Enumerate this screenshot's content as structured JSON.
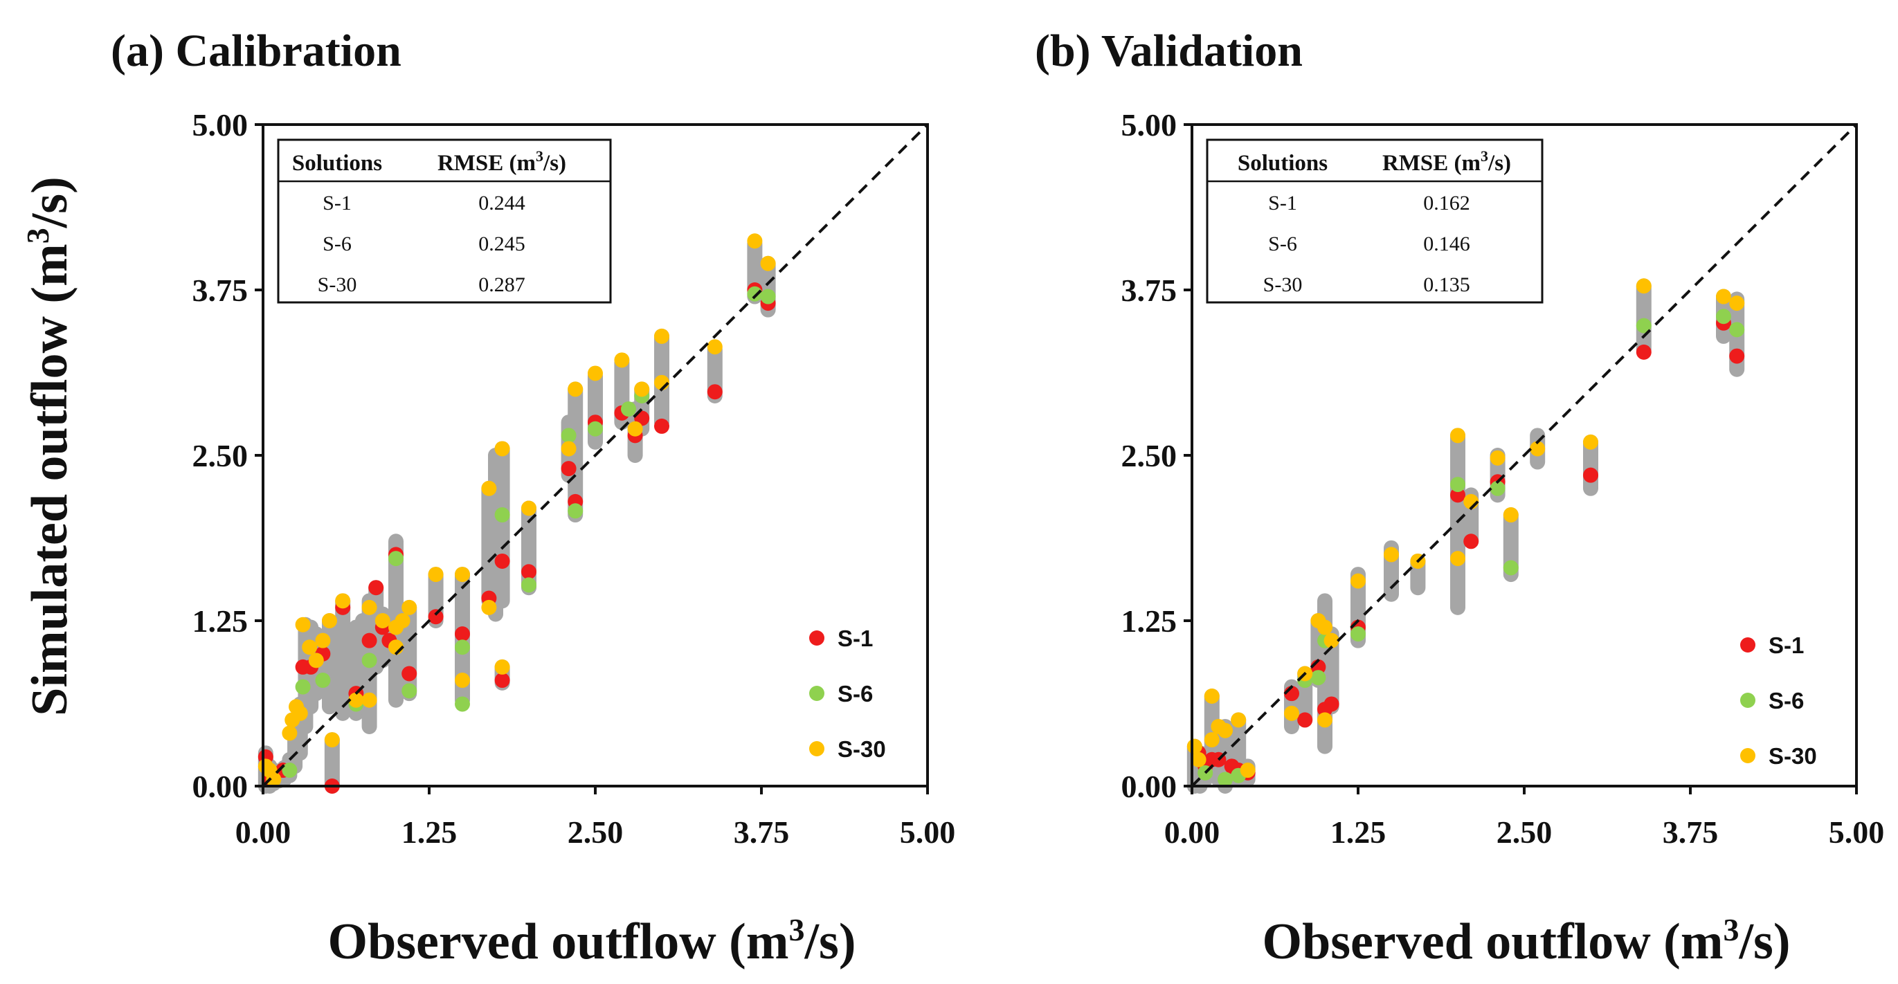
{
  "chart_data": [
    {
      "type": "scatter",
      "title": "(a) Calibration",
      "xlabel": "Observed outflow",
      "ylabel": "Simulated outflow",
      "xlim": [
        0,
        5
      ],
      "ylim": [
        0,
        5
      ],
      "xticks": [
        "0.00",
        "1.25",
        "2.50",
        "3.75",
        "5.00"
      ],
      "yticks": [
        "0.00",
        "1.25",
        "2.50",
        "3.75",
        "5.00"
      ],
      "table": {
        "headers": [
          "Solutions",
          "RMSE (m",
          "3",
          "/s)"
        ],
        "rows": [
          [
            "S-1",
            "0.244"
          ],
          [
            "S-6",
            "0.245"
          ],
          [
            "S-30",
            "0.287"
          ]
        ]
      },
      "ensemble": {
        "color": "#a6a6a6",
        "ranges": [
          [
            0.02,
            0.0,
            0.25
          ],
          [
            0.05,
            0.0,
            0.15
          ],
          [
            0.08,
            0.02,
            0.12
          ],
          [
            0.12,
            0.04,
            0.1
          ],
          [
            0.16,
            0.05,
            0.14
          ],
          [
            0.2,
            0.08,
            0.2
          ],
          [
            0.24,
            0.15,
            0.45
          ],
          [
            0.28,
            0.25,
            0.62
          ],
          [
            0.32,
            0.45,
            1.22
          ],
          [
            0.36,
            0.6,
            1.2
          ],
          [
            0.4,
            0.7,
            1.15
          ],
          [
            0.45,
            0.9,
            1.1
          ],
          [
            0.5,
            0.6,
            1.25
          ],
          [
            0.52,
            0.0,
            0.35
          ],
          [
            0.6,
            0.55,
            1.4
          ],
          [
            0.7,
            0.55,
            1.2
          ],
          [
            0.75,
            0.6,
            1.25
          ],
          [
            0.8,
            0.45,
            1.4
          ],
          [
            0.85,
            0.9,
            1.5
          ],
          [
            0.9,
            0.95,
            1.3
          ],
          [
            0.95,
            1.0,
            1.25
          ],
          [
            1.0,
            0.65,
            1.85
          ],
          [
            1.05,
            1.0,
            1.3
          ],
          [
            1.1,
            0.7,
            1.35
          ],
          [
            1.3,
            1.25,
            1.6
          ],
          [
            1.5,
            0.65,
            1.6
          ],
          [
            1.7,
            1.4,
            2.25
          ],
          [
            1.75,
            1.3,
            2.5
          ],
          [
            1.8,
            0.78,
            0.9
          ],
          [
            1.8,
            1.4,
            2.55
          ],
          [
            2.0,
            1.5,
            2.1
          ],
          [
            2.3,
            2.35,
            2.75
          ],
          [
            2.35,
            2.05,
            3.0
          ],
          [
            2.5,
            2.6,
            3.1
          ],
          [
            2.7,
            2.75,
            3.2
          ],
          [
            2.8,
            2.5,
            2.85
          ],
          [
            2.85,
            2.7,
            3.0
          ],
          [
            3.0,
            2.75,
            3.4
          ],
          [
            3.4,
            2.95,
            3.3
          ],
          [
            3.7,
            3.7,
            4.1
          ],
          [
            3.8,
            3.6,
            3.95
          ]
        ]
      },
      "series": [
        {
          "name": "S-1",
          "color": "#ee1c1c",
          "points": [
            [
              0.02,
              0.22
            ],
            [
              0.06,
              0.05
            ],
            [
              0.15,
              0.12
            ],
            [
              0.3,
              0.9
            ],
            [
              0.36,
              0.9
            ],
            [
              0.45,
              1.0
            ],
            [
              0.52,
              0.0
            ],
            [
              0.6,
              1.35
            ],
            [
              0.7,
              0.7
            ],
            [
              0.8,
              1.1
            ],
            [
              0.85,
              1.5
            ],
            [
              0.9,
              1.2
            ],
            [
              0.95,
              1.1
            ],
            [
              1.0,
              1.75
            ],
            [
              1.1,
              0.85
            ],
            [
              1.3,
              1.28
            ],
            [
              1.5,
              1.15
            ],
            [
              1.7,
              1.42
            ],
            [
              1.8,
              0.8
            ],
            [
              1.8,
              1.7
            ],
            [
              2.0,
              1.62
            ],
            [
              2.3,
              2.4
            ],
            [
              2.35,
              2.15
            ],
            [
              2.5,
              2.75
            ],
            [
              2.7,
              2.82
            ],
            [
              2.8,
              2.65
            ],
            [
              2.85,
              2.78
            ],
            [
              3.0,
              2.72
            ],
            [
              3.4,
              2.98
            ],
            [
              3.7,
              3.75
            ],
            [
              3.8,
              3.65
            ]
          ]
        },
        {
          "name": "S-6",
          "color": "#8fd14f",
          "points": [
            [
              0.2,
              0.12
            ],
            [
              0.3,
              0.75
            ],
            [
              0.45,
              0.8
            ],
            [
              0.7,
              0.62
            ],
            [
              0.8,
              0.95
            ],
            [
              1.0,
              1.72
            ],
            [
              1.1,
              0.72
            ],
            [
              1.5,
              0.62
            ],
            [
              1.5,
              1.05
            ],
            [
              1.8,
              2.05
            ],
            [
              2.0,
              1.52
            ],
            [
              2.35,
              2.08
            ],
            [
              2.3,
              2.65
            ],
            [
              2.5,
              2.7
            ],
            [
              2.75,
              2.85
            ],
            [
              2.85,
              2.95
            ],
            [
              3.7,
              3.72
            ],
            [
              3.8,
              3.7
            ]
          ]
        },
        {
          "name": "S-30",
          "color": "#ffc000",
          "points": [
            [
              0.02,
              0.15
            ],
            [
              0.05,
              0.12
            ],
            [
              0.08,
              0.05
            ],
            [
              0.2,
              0.4
            ],
            [
              0.22,
              0.5
            ],
            [
              0.25,
              0.6
            ],
            [
              0.28,
              0.55
            ],
            [
              0.3,
              1.22
            ],
            [
              0.35,
              1.05
            ],
            [
              0.4,
              0.95
            ],
            [
              0.45,
              1.1
            ],
            [
              0.5,
              1.25
            ],
            [
              0.52,
              0.35
            ],
            [
              0.6,
              1.4
            ],
            [
              0.7,
              0.65
            ],
            [
              0.8,
              0.65
            ],
            [
              0.8,
              1.35
            ],
            [
              0.9,
              1.25
            ],
            [
              1.0,
              1.05
            ],
            [
              1.0,
              1.2
            ],
            [
              1.05,
              1.25
            ],
            [
              1.1,
              1.35
            ],
            [
              1.3,
              1.6
            ],
            [
              1.5,
              0.8
            ],
            [
              1.5,
              1.6
            ],
            [
              1.7,
              1.35
            ],
            [
              1.7,
              2.25
            ],
            [
              1.8,
              0.9
            ],
            [
              1.8,
              2.55
            ],
            [
              2.0,
              2.1
            ],
            [
              2.3,
              2.55
            ],
            [
              2.35,
              3.0
            ],
            [
              2.5,
              3.12
            ],
            [
              2.7,
              3.22
            ],
            [
              2.8,
              2.7
            ],
            [
              2.85,
              3.0
            ],
            [
              3.0,
              3.4
            ],
            [
              3.0,
              3.05
            ],
            [
              3.4,
              3.32
            ],
            [
              3.7,
              4.12
            ],
            [
              3.8,
              3.95
            ]
          ]
        }
      ]
    },
    {
      "type": "scatter",
      "title": "(b) Validation",
      "xlabel": "Observed outflow",
      "ylabel": "",
      "xlim": [
        0,
        5
      ],
      "ylim": [
        0,
        5
      ],
      "xticks": [
        "0.00",
        "1.25",
        "2.50",
        "3.75",
        "5.00"
      ],
      "yticks": [
        "0.00",
        "1.25",
        "2.50",
        "3.75",
        "5.00"
      ],
      "table": {
        "headers": [
          "Solutions",
          "RMSE (m",
          "3",
          "/s)"
        ],
        "rows": [
          [
            "S-1",
            "0.162"
          ],
          [
            "S-6",
            "0.146"
          ],
          [
            "S-30",
            "0.135"
          ]
        ]
      },
      "ensemble": {
        "color": "#a6a6a6",
        "ranges": [
          [
            0.02,
            0.0,
            0.3
          ],
          [
            0.06,
            0.0,
            0.25
          ],
          [
            0.1,
            0.05,
            0.2
          ],
          [
            0.15,
            0.1,
            0.68
          ],
          [
            0.2,
            0.05,
            0.4
          ],
          [
            0.25,
            0.0,
            0.45
          ],
          [
            0.3,
            0.05,
            0.35
          ],
          [
            0.35,
            0.05,
            0.5
          ],
          [
            0.42,
            0.05,
            0.15
          ],
          [
            0.75,
            0.45,
            0.75
          ],
          [
            0.85,
            0.5,
            0.85
          ],
          [
            0.95,
            0.8,
            1.25
          ],
          [
            1.0,
            0.3,
            1.4
          ],
          [
            1.05,
            0.6,
            1.15
          ],
          [
            1.25,
            1.1,
            1.6
          ],
          [
            1.5,
            1.45,
            1.8
          ],
          [
            1.7,
            1.5,
            1.7
          ],
          [
            2.0,
            1.35,
            2.65
          ],
          [
            2.1,
            1.85,
            2.2
          ],
          [
            2.3,
            2.2,
            2.5
          ],
          [
            2.4,
            1.6,
            2.05
          ],
          [
            2.6,
            2.45,
            2.65
          ],
          [
            3.0,
            2.25,
            2.6
          ],
          [
            3.4,
            3.3,
            3.78
          ],
          [
            4.0,
            3.4,
            3.7
          ],
          [
            4.1,
            3.15,
            3.68
          ]
        ]
      },
      "series": [
        {
          "name": "S-1",
          "color": "#ee1c1c",
          "points": [
            [
              0.05,
              0.25
            ],
            [
              0.1,
              0.15
            ],
            [
              0.15,
              0.2
            ],
            [
              0.2,
              0.2
            ],
            [
              0.3,
              0.15
            ],
            [
              0.35,
              0.12
            ],
            [
              0.42,
              0.1
            ],
            [
              0.75,
              0.7
            ],
            [
              0.85,
              0.5
            ],
            [
              0.95,
              0.9
            ],
            [
              1.0,
              0.58
            ],
            [
              1.05,
              0.62
            ],
            [
              1.25,
              1.2
            ],
            [
              2.0,
              2.2
            ],
            [
              2.1,
              1.85
            ],
            [
              2.3,
              2.3
            ],
            [
              3.0,
              2.35
            ],
            [
              3.4,
              3.28
            ],
            [
              4.0,
              3.5
            ],
            [
              4.1,
              3.25
            ]
          ]
        },
        {
          "name": "S-6",
          "color": "#8fd14f",
          "points": [
            [
              0.1,
              0.1
            ],
            [
              0.25,
              0.05
            ],
            [
              0.35,
              0.08
            ],
            [
              0.85,
              0.8
            ],
            [
              0.95,
              0.82
            ],
            [
              1.0,
              1.1
            ],
            [
              1.25,
              1.15
            ],
            [
              2.0,
              2.28
            ],
            [
              2.3,
              2.25
            ],
            [
              2.4,
              1.65
            ],
            [
              3.4,
              3.48
            ],
            [
              4.0,
              3.55
            ],
            [
              4.1,
              3.45
            ]
          ]
        },
        {
          "name": "S-30",
          "color": "#ffc000",
          "points": [
            [
              0.02,
              0.3
            ],
            [
              0.05,
              0.2
            ],
            [
              0.15,
              0.68
            ],
            [
              0.15,
              0.35
            ],
            [
              0.2,
              0.45
            ],
            [
              0.25,
              0.42
            ],
            [
              0.35,
              0.5
            ],
            [
              0.42,
              0.12
            ],
            [
              0.75,
              0.55
            ],
            [
              0.85,
              0.85
            ],
            [
              0.95,
              1.25
            ],
            [
              1.0,
              0.5
            ],
            [
              1.0,
              1.2
            ],
            [
              1.05,
              1.1
            ],
            [
              1.25,
              1.55
            ],
            [
              1.5,
              1.75
            ],
            [
              1.7,
              1.7
            ],
            [
              2.0,
              2.65
            ],
            [
              2.0,
              1.72
            ],
            [
              2.1,
              2.15
            ],
            [
              2.3,
              2.48
            ],
            [
              2.4,
              2.05
            ],
            [
              2.6,
              2.55
            ],
            [
              3.0,
              2.6
            ],
            [
              3.4,
              3.78
            ],
            [
              4.0,
              3.7
            ],
            [
              4.1,
              3.65
            ]
          ]
        }
      ]
    }
  ]
}
